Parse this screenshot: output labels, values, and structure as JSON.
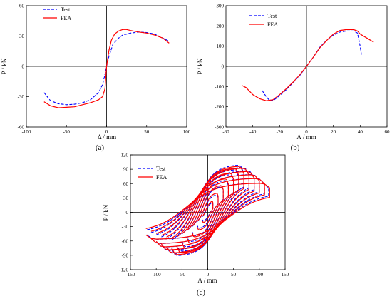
{
  "chart_data": [
    {
      "type": "line",
      "panel_label": "(a)",
      "xlabel": "Δ / mm",
      "ylabel": "P / kN",
      "xlim": [
        -100,
        100
      ],
      "ylim": [
        -60,
        60
      ],
      "xticks": [
        "-100",
        "-50",
        "0",
        "50",
        "100"
      ],
      "yticks": [
        "-60",
        "-30",
        "0",
        "30",
        "60"
      ],
      "grid": false,
      "legend_position": "top-left",
      "colors": {
        "Test": "#0000ff",
        "FEA": "#ff0000"
      },
      "series": [
        {
          "name": "Test",
          "style": "dashed",
          "x": [
            -78,
            -70,
            -60,
            -50,
            -40,
            -30,
            -20,
            -10,
            -5,
            -2,
            0,
            3,
            8,
            15,
            20,
            30,
            40,
            50,
            60,
            70,
            78
          ],
          "y": [
            -26,
            -34,
            -37,
            -38,
            -37.5,
            -36,
            -33,
            -26,
            -18,
            -8,
            0,
            10,
            22,
            28,
            31,
            33,
            34,
            33.5,
            32,
            28,
            25
          ]
        },
        {
          "name": "FEA",
          "style": "solid",
          "x": [
            -78,
            -70,
            -60,
            -50,
            -40,
            -30,
            -20,
            -10,
            -5,
            -2,
            0,
            3,
            6,
            10,
            15,
            20,
            25,
            30,
            40,
            50,
            60,
            70,
            78
          ],
          "y": [
            -35,
            -39,
            -41,
            -40.5,
            -40,
            -38,
            -36,
            -33,
            -30,
            -22,
            0,
            16,
            26,
            32,
            35,
            36.5,
            36.5,
            35.5,
            34,
            33,
            31,
            28,
            23
          ]
        }
      ]
    },
    {
      "type": "line",
      "panel_label": "(b)",
      "xlabel": "Λ / mm",
      "ylabel": "P / kN",
      "xlim": [
        -60,
        60
      ],
      "ylim": [
        -300,
        300
      ],
      "xticks": [
        "-60",
        "-40",
        "-20",
        "0",
        "20",
        "40",
        "60"
      ],
      "yticks": [
        "-300",
        "-200",
        "-100",
        "0",
        "100",
        "200",
        "300"
      ],
      "grid": false,
      "legend_position": "top-right",
      "colors": {
        "Test": "#0000ff",
        "FEA": "#ff0000"
      },
      "series": [
        {
          "name": "Test",
          "style": "dashed",
          "x": [
            -33,
            -30,
            -28,
            -25,
            -20,
            -15,
            -10,
            -5,
            0,
            5,
            10,
            15,
            20,
            25,
            30,
            35,
            38,
            40,
            41
          ],
          "y": [
            -120,
            -150,
            -165,
            -170,
            -145,
            -115,
            -80,
            -45,
            0,
            45,
            95,
            130,
            155,
            170,
            175,
            175,
            165,
            100,
            55
          ]
        },
        {
          "name": "FEA",
          "style": "solid",
          "x": [
            -48,
            -45,
            -40,
            -35,
            -30,
            -25,
            -20,
            -15,
            -10,
            -5,
            0,
            5,
            10,
            15,
            20,
            25,
            30,
            35,
            38,
            40,
            45,
            50
          ],
          "y": [
            -95,
            -105,
            -140,
            -160,
            -170,
            -165,
            -140,
            -110,
            -78,
            -42,
            0,
            45,
            92,
            128,
            160,
            178,
            182,
            182,
            175,
            160,
            140,
            120
          ]
        }
      ]
    },
    {
      "type": "line",
      "panel_label": "(c)",
      "xlabel": "Λ / mm",
      "ylabel": "P / kN",
      "xlim": [
        -150,
        150
      ],
      "ylim": [
        -120,
        120
      ],
      "xticks": [
        "-150",
        "-100",
        "-50",
        "0",
        "50",
        "100",
        "150"
      ],
      "yticks": [
        "-120",
        "-90",
        "-60",
        "-30",
        "0",
        "30",
        "60",
        "90",
        "120"
      ],
      "grid": false,
      "legend_position": "top-left",
      "colors": {
        "Test": "#0000ff",
        "FEA": "#ff0000"
      },
      "cycle_amplitudes_mm": [
        10,
        20,
        30,
        40,
        50,
        60,
        70,
        80,
        90,
        100,
        110,
        120
      ],
      "series": [
        {
          "name": "Test",
          "style": "dashed",
          "loops": [
            {
              "dmax": 10,
              "pmax": 22
            },
            {
              "dmax": 20,
              "pmax": 38
            },
            {
              "dmax": 30,
              "pmax": 55
            },
            {
              "dmax": 40,
              "pmax": 68
            },
            {
              "dmax": 50,
              "pmax": 80
            },
            {
              "dmax": 60,
              "pmax": 90
            },
            {
              "dmax": 70,
              "pmax": 100
            },
            {
              "dmax": 80,
              "pmax": 95
            },
            {
              "dmax": 90,
              "pmax": 88
            },
            {
              "dmax": 100,
              "pmax": 80
            },
            {
              "dmax": 110,
              "pmax": 72
            },
            {
              "dmax": 118,
              "pmax": 62
            }
          ]
        },
        {
          "name": "FEA",
          "style": "solid",
          "loops": [
            {
              "dmax": 10,
              "pmax": 24
            },
            {
              "dmax": 20,
              "pmax": 40
            },
            {
              "dmax": 30,
              "pmax": 56
            },
            {
              "dmax": 40,
              "pmax": 70
            },
            {
              "dmax": 50,
              "pmax": 82
            },
            {
              "dmax": 60,
              "pmax": 92
            },
            {
              "dmax": 70,
              "pmax": 96
            },
            {
              "dmax": 80,
              "pmax": 92
            },
            {
              "dmax": 90,
              "pmax": 85
            },
            {
              "dmax": 100,
              "pmax": 78
            },
            {
              "dmax": 110,
              "pmax": 70
            },
            {
              "dmax": 120,
              "pmax": 60
            }
          ]
        }
      ]
    }
  ]
}
